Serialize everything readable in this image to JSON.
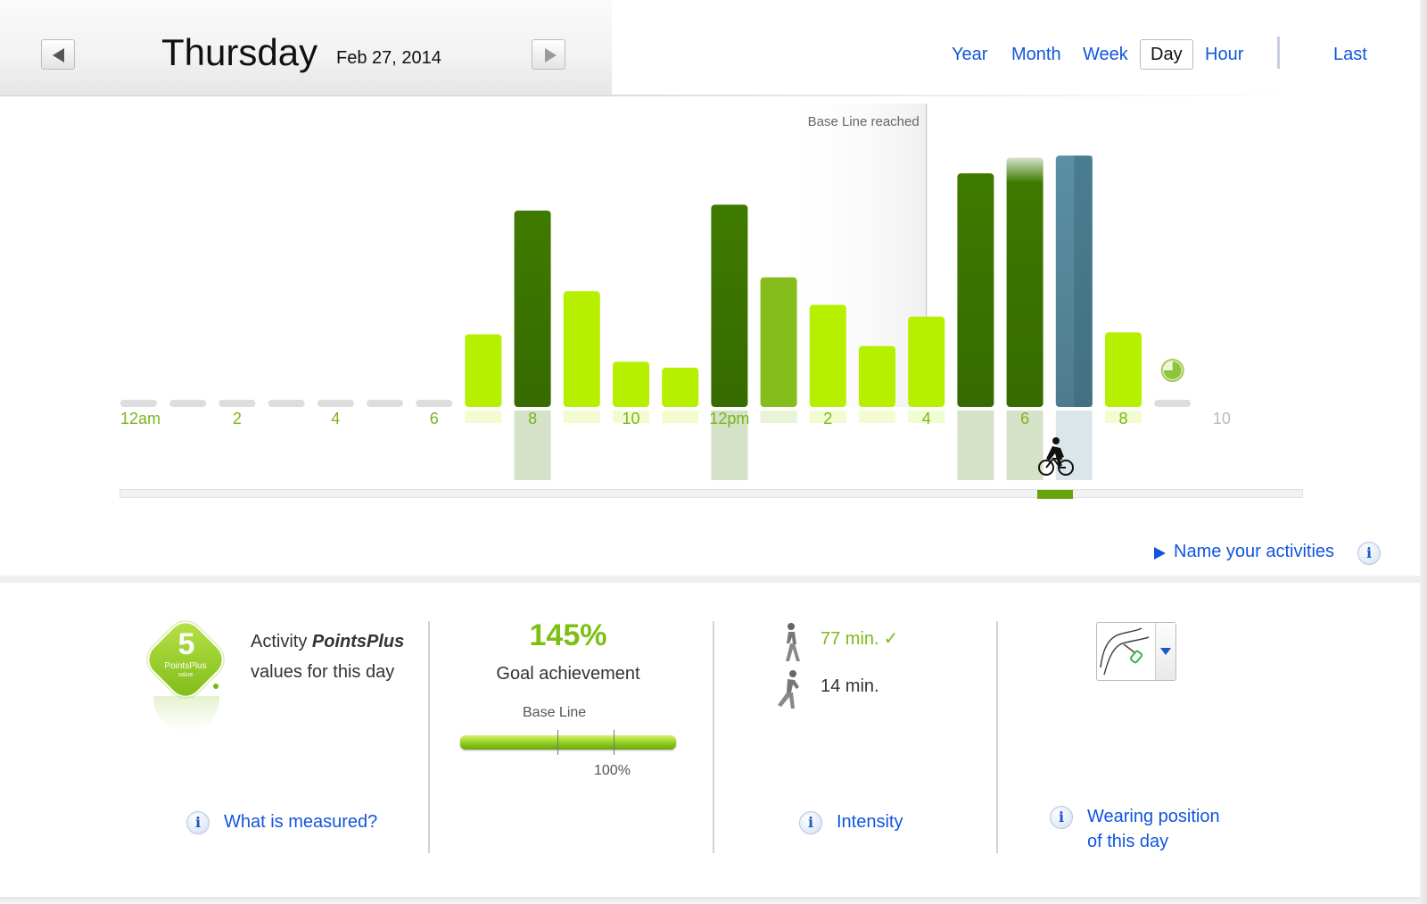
{
  "header": {
    "day": "Thursday",
    "date": "Feb 27, 2014",
    "tabs": [
      {
        "label": "Year",
        "active": false
      },
      {
        "label": "Month",
        "active": false
      },
      {
        "label": "Week",
        "active": false
      },
      {
        "label": "Day",
        "active": true
      },
      {
        "label": "Hour",
        "active": false
      }
    ],
    "last_label": "Last"
  },
  "chart_data": {
    "type": "bar",
    "x": [
      0,
      1,
      2,
      3,
      4,
      5,
      6,
      7,
      8,
      9,
      10,
      11,
      12,
      13,
      14,
      15,
      16,
      17,
      18,
      19,
      20,
      21
    ],
    "values": [
      0,
      0,
      0,
      0,
      0,
      0,
      0,
      37,
      100,
      59,
      23,
      20,
      103,
      66,
      52,
      31,
      46,
      119,
      127,
      128,
      38,
      0
    ],
    "intensity": [
      "none",
      "none",
      "none",
      "none",
      "none",
      "none",
      "none",
      "light",
      "high",
      "light",
      "light",
      "light",
      "high",
      "medium",
      "light",
      "light",
      "light",
      "high",
      "high",
      "selected",
      "light",
      "none"
    ],
    "tick_labels": [
      {
        "hour": 0,
        "label": "12am"
      },
      {
        "hour": 2,
        "label": "2"
      },
      {
        "hour": 4,
        "label": "4"
      },
      {
        "hour": 6,
        "label": "6"
      },
      {
        "hour": 8,
        "label": "8"
      },
      {
        "hour": 10,
        "label": "10"
      },
      {
        "hour": 12,
        "label": "12pm"
      },
      {
        "hour": 14,
        "label": "2"
      },
      {
        "hour": 16,
        "label": "4"
      },
      {
        "hour": 18,
        "label": "6"
      },
      {
        "hour": 20,
        "label": "8"
      },
      {
        "hour": 22,
        "label": "10"
      }
    ],
    "baseline_annotation": {
      "hour": 16.5,
      "label": "Base Line reached"
    },
    "current_hour": 21,
    "colors": {
      "light": "#b6f000",
      "medium": "#84bd1c",
      "high": "#3f7a00",
      "selected": "#5a8fa3",
      "empty": "#dddddd",
      "future_label": "#bbbbbb",
      "tick": "#7ab51c"
    },
    "ylim": [
      0,
      130
    ]
  },
  "activities": {
    "name_label": "Name your activities"
  },
  "points": {
    "value": "5",
    "badge_label": "PointsPlus",
    "badge_sub": "value",
    "line1_prefix": "Activity ",
    "line1_brand": "PointsPlus",
    "line2": "values for this day",
    "link": "What is measured?"
  },
  "goal": {
    "percent": "145%",
    "label": "Goal achievement",
    "baseline_label": "Base Line",
    "hundred_label": "100%",
    "baseline_fraction": 0.45,
    "hundred_fraction": 0.71
  },
  "intensity": {
    "walk_minutes": "77 min.",
    "run_minutes": "14 min.",
    "checkmark": "✓",
    "link": "Intensity"
  },
  "wearing": {
    "line1": "Wearing position",
    "line2": "of this day"
  },
  "icons": {
    "info": "i"
  }
}
